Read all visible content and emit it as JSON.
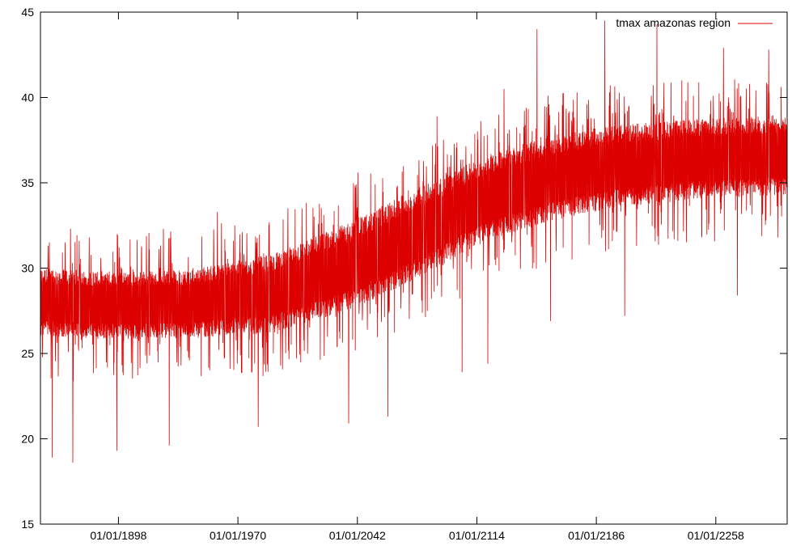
{
  "chart_data": {
    "type": "line",
    "title": "",
    "xlabel": "",
    "ylabel": "",
    "ylim": [
      15,
      45
    ],
    "xlim": [
      "1851-01-01",
      "2300-12-31"
    ],
    "y_ticks": [
      15,
      20,
      25,
      30,
      35,
      40,
      45
    ],
    "x_ticks": [
      {
        "date": "1898-01-01",
        "label": "01/01/1898"
      },
      {
        "date": "1970-01-01",
        "label": "01/01/1970"
      },
      {
        "date": "2042-01-01",
        "label": "01/01/2042"
      },
      {
        "date": "2114-01-01",
        "label": "01/01/2114"
      },
      {
        "date": "2186-01-01",
        "label": "01/01/2186"
      },
      {
        "date": "2258-01-01",
        "label": "01/01/2258"
      }
    ],
    "grid": false,
    "legend_position": "top-right",
    "series": [
      {
        "name": "tmax amazonas region",
        "color": "#dd0000",
        "trend": [
          {
            "x": "1851-01-01",
            "y": 28.0
          },
          {
            "x": "1900-01-01",
            "y": 27.8
          },
          {
            "x": "1940-01-01",
            "y": 27.9
          },
          {
            "x": "1990-01-01",
            "y": 28.6
          },
          {
            "x": "2040-01-01",
            "y": 30.3
          },
          {
            "x": "2080-01-01",
            "y": 32.3
          },
          {
            "x": "2120-01-01",
            "y": 34.2
          },
          {
            "x": "2160-01-01",
            "y": 35.3
          },
          {
            "x": "2200-01-01",
            "y": 36.0
          },
          {
            "x": "2240-01-01",
            "y": 36.4
          },
          {
            "x": "2300-12-31",
            "y": 36.8
          }
        ],
        "band_low": [
          {
            "x": "1851-01-01",
            "y": 26.0
          },
          {
            "x": "1900-01-01",
            "y": 25.8
          },
          {
            "x": "1940-01-01",
            "y": 25.9
          },
          {
            "x": "1990-01-01",
            "y": 26.2
          },
          {
            "x": "2040-01-01",
            "y": 27.6
          },
          {
            "x": "2080-01-01",
            "y": 29.5
          },
          {
            "x": "2120-01-01",
            "y": 31.6
          },
          {
            "x": "2160-01-01",
            "y": 32.8
          },
          {
            "x": "2200-01-01",
            "y": 33.6
          },
          {
            "x": "2240-01-01",
            "y": 34.0
          },
          {
            "x": "2300-12-31",
            "y": 34.3
          }
        ],
        "band_high": [
          {
            "x": "1851-01-01",
            "y": 30.0
          },
          {
            "x": "1900-01-01",
            "y": 29.8
          },
          {
            "x": "1940-01-01",
            "y": 29.9
          },
          {
            "x": "1990-01-01",
            "y": 30.8
          },
          {
            "x": "2040-01-01",
            "y": 32.8
          },
          {
            "x": "2080-01-01",
            "y": 34.8
          },
          {
            "x": "2120-01-01",
            "y": 36.6
          },
          {
            "x": "2160-01-01",
            "y": 37.8
          },
          {
            "x": "2200-01-01",
            "y": 38.4
          },
          {
            "x": "2240-01-01",
            "y": 38.7
          },
          {
            "x": "2300-12-31",
            "y": 39.0
          }
        ],
        "spike_maxima": [
          {
            "x": "1880-06-01",
            "y": 31.8
          },
          {
            "x": "1925-03-01",
            "y": 32.3
          },
          {
            "x": "1957-08-01",
            "y": 33.3
          },
          {
            "x": "2000-02-01",
            "y": 33.5
          },
          {
            "x": "2042-06-01",
            "y": 35.6
          },
          {
            "x": "2090-01-01",
            "y": 38.9
          },
          {
            "x": "2130-05-01",
            "y": 40.5
          },
          {
            "x": "2150-04-01",
            "y": 44.0
          },
          {
            "x": "2191-02-01",
            "y": 44.5
          },
          {
            "x": "2222-07-01",
            "y": 44.3
          },
          {
            "x": "2262-09-01",
            "y": 42.9
          },
          {
            "x": "2289-11-01",
            "y": 42.8
          }
        ],
        "spike_minima": [
          {
            "x": "1858-03-01",
            "y": 18.9
          },
          {
            "x": "1870-07-01",
            "y": 18.6
          },
          {
            "x": "1897-01-01",
            "y": 19.3
          },
          {
            "x": "1928-09-01",
            "y": 19.6
          },
          {
            "x": "1982-04-01",
            "y": 20.7
          },
          {
            "x": "2036-10-01",
            "y": 20.9
          },
          {
            "x": "2060-05-01",
            "y": 21.3
          },
          {
            "x": "2105-02-01",
            "y": 23.9
          },
          {
            "x": "2120-08-01",
            "y": 24.4
          },
          {
            "x": "2158-06-01",
            "y": 26.9
          },
          {
            "x": "2203-03-01",
            "y": 27.2
          },
          {
            "x": "2271-01-01",
            "y": 28.4
          }
        ]
      }
    ]
  }
}
